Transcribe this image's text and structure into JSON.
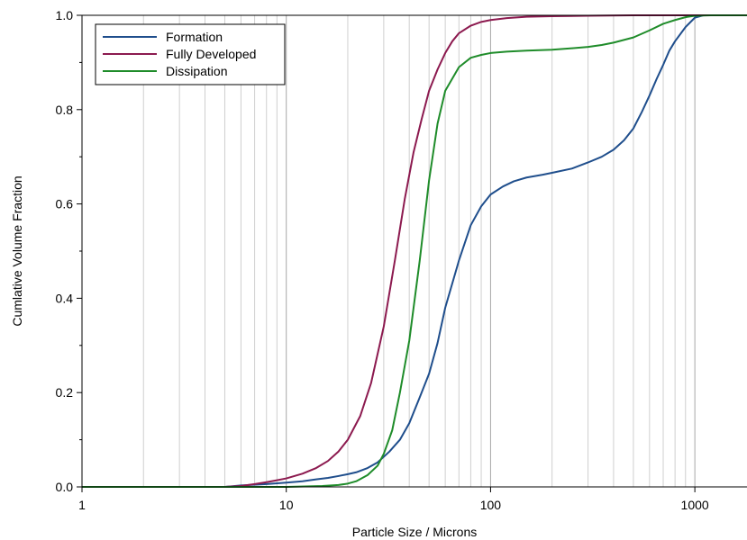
{
  "chart_data": {
    "type": "line",
    "title": "",
    "xlabel": "Particle Size / Microns",
    "ylabel": "Cumlative Volume Fraction",
    "xscale": "log",
    "xlim": [
      1,
      1800
    ],
    "ylim": [
      0,
      1.0
    ],
    "x_ticks": [
      1,
      10,
      100,
      1000
    ],
    "x_tick_labels": [
      "1",
      "10",
      "100",
      "1000"
    ],
    "y_ticks": [
      0,
      0.2,
      0.4,
      0.6,
      0.8,
      1.0
    ],
    "y_tick_labels": [
      "0.0",
      "0.2",
      "0.4",
      "0.6",
      "0.8",
      "1.0"
    ],
    "grid": "vertical minor",
    "legend_position": "top-left",
    "series": [
      {
        "name": "Formation",
        "color": "#1f4e8c",
        "x": [
          1,
          5,
          6,
          8,
          10,
          12,
          14,
          16,
          18,
          20,
          22,
          25,
          28,
          32,
          36,
          40,
          45,
          50,
          55,
          60,
          70,
          80,
          90,
          100,
          115,
          130,
          150,
          180,
          200,
          250,
          300,
          350,
          400,
          450,
          500,
          550,
          600,
          650,
          700,
          750,
          800,
          900,
          1000,
          1100,
          1300,
          1800
        ],
        "y": [
          0,
          0,
          0.003,
          0.006,
          0.009,
          0.012,
          0.016,
          0.019,
          0.023,
          0.027,
          0.031,
          0.04,
          0.052,
          0.075,
          0.1,
          0.135,
          0.19,
          0.24,
          0.305,
          0.38,
          0.48,
          0.555,
          0.595,
          0.62,
          0.637,
          0.648,
          0.656,
          0.662,
          0.666,
          0.675,
          0.688,
          0.7,
          0.715,
          0.735,
          0.76,
          0.795,
          0.83,
          0.865,
          0.895,
          0.925,
          0.945,
          0.975,
          0.995,
          1.0,
          1.0,
          1.0
        ]
      },
      {
        "name": "Fully Developed",
        "color": "#8c1a4f",
        "x": [
          1,
          5,
          6,
          7,
          8,
          9,
          10,
          12,
          14,
          16,
          18,
          20,
          23,
          26,
          30,
          34,
          38,
          42,
          46,
          50,
          55,
          60,
          65,
          70,
          80,
          90,
          100,
          120,
          150,
          200,
          300,
          500,
          1000,
          1800
        ],
        "y": [
          0,
          0,
          0.002,
          0.006,
          0.01,
          0.014,
          0.018,
          0.028,
          0.04,
          0.055,
          0.075,
          0.1,
          0.15,
          0.22,
          0.34,
          0.48,
          0.61,
          0.71,
          0.78,
          0.84,
          0.885,
          0.92,
          0.945,
          0.962,
          0.978,
          0.986,
          0.99,
          0.994,
          0.997,
          0.998,
          0.999,
          1.0,
          1.0,
          1.0
        ]
      },
      {
        "name": "Dissipation",
        "color": "#1f8c2a",
        "x": [
          1,
          10,
          15,
          18,
          20,
          22,
          25,
          28,
          30,
          33,
          36,
          40,
          45,
          50,
          55,
          60,
          70,
          80,
          90,
          100,
          120,
          150,
          200,
          250,
          300,
          350,
          400,
          500,
          600,
          700,
          800,
          900,
          1000,
          1200,
          1800
        ],
        "y": [
          0,
          0,
          0.002,
          0.004,
          0.007,
          0.012,
          0.025,
          0.045,
          0.07,
          0.12,
          0.2,
          0.31,
          0.48,
          0.65,
          0.77,
          0.84,
          0.89,
          0.91,
          0.916,
          0.92,
          0.923,
          0.925,
          0.927,
          0.93,
          0.933,
          0.937,
          0.942,
          0.953,
          0.968,
          0.982,
          0.99,
          0.996,
          0.999,
          1.0,
          1.0
        ]
      }
    ]
  }
}
